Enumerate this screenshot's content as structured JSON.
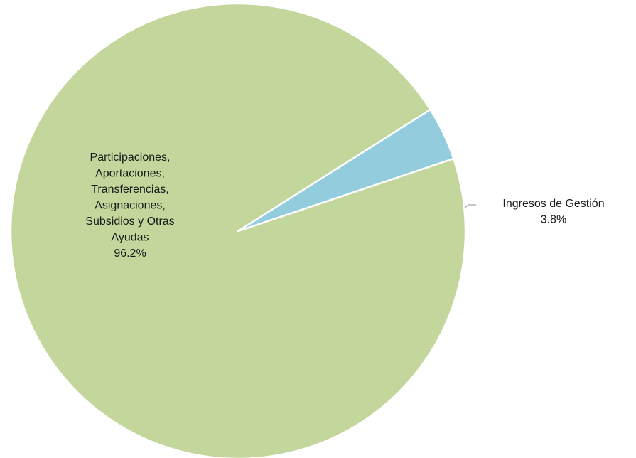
{
  "chart_data": {
    "type": "pie",
    "title": "",
    "slices": [
      {
        "category_lines": [
          "Participaciones,",
          "Aportaciones,",
          "Transferencias,",
          "Asignaciones,",
          "Subsidios y Otras",
          "Ayudas"
        ],
        "value": 96.2,
        "value_label": "96.2%",
        "color": "#c3d69b"
      },
      {
        "category_lines": [
          "Ingresos de Gestión"
        ],
        "value": 3.8,
        "value_label": "3.8%",
        "color": "#93cddd"
      }
    ],
    "legend": "none",
    "start_angle_deg": -18.6,
    "direction": "clockwise"
  }
}
